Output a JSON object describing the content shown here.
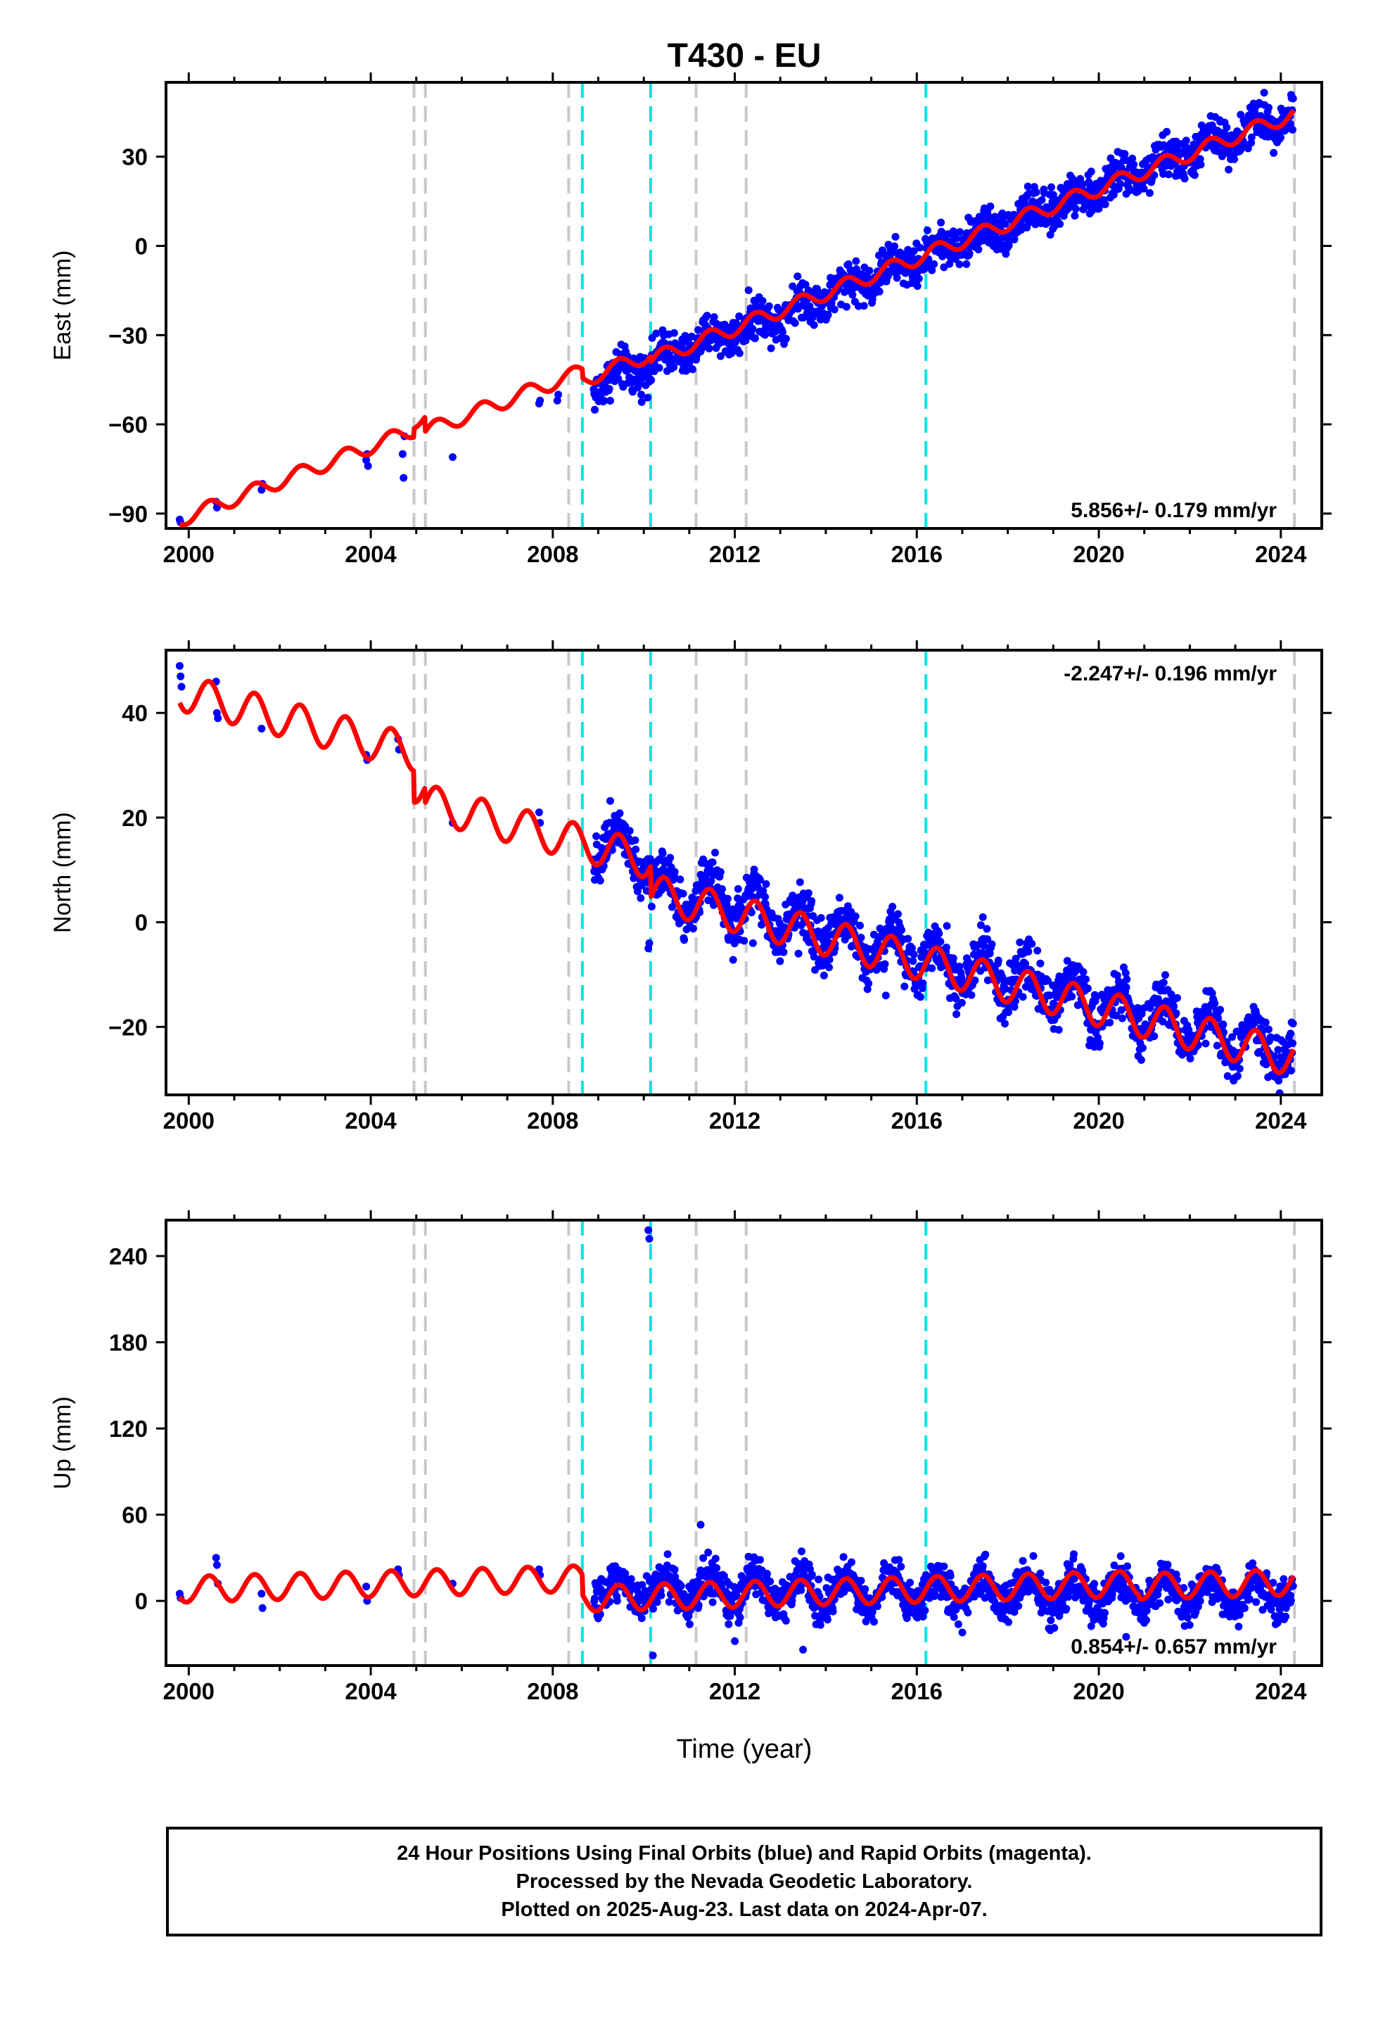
{
  "title": "T430 - EU",
  "x_axis_label": "Time (year)",
  "footer": {
    "lines": [
      "24 Hour Positions Using Final Orbits (blue) and Rapid Orbits (magenta).",
      "Processed by the Nevada Geodetic Laboratory.",
      "Plotted on 2025-Aug-23. Last data on 2024-Apr-07."
    ]
  },
  "colors": {
    "data_points": "#0000ff",
    "model_fit": "#ff0000",
    "equipment_change_lines": "#c8c8c8",
    "earthquake_lines": "#00e5e5"
  },
  "chart_data": [
    {
      "type": "scatter",
      "component": "east",
      "ylabel": "East (mm)",
      "rate_label": "5.856+/- 0.179 mm/yr",
      "xlim": [
        1999.5,
        2024.9
      ],
      "ylim": [
        -95,
        55
      ],
      "x_ticks": [
        "2000",
        "2004",
        "2008",
        "2012",
        "2016",
        "2020",
        "2024"
      ],
      "y_ticks": [
        "−90",
        "−60",
        "−30",
        "0",
        "30"
      ],
      "y_tick_values": [
        -90,
        -60,
        -30,
        0,
        30
      ],
      "series": [
        {
          "role": "observations",
          "color": "#0000ff",
          "points": [
            [
              1999.8,
              -92
            ],
            [
              1999.82,
              -93
            ],
            [
              2000.6,
              -86
            ],
            [
              2000.62,
              -88
            ],
            [
              2001.6,
              -82
            ],
            [
              2001.62,
              -80
            ],
            [
              2003.9,
              -72
            ],
            [
              2003.92,
              -70
            ],
            [
              2003.94,
              -74
            ],
            [
              2004.7,
              -70
            ],
            [
              2004.72,
              -78
            ],
            [
              2004.74,
              -64
            ],
            [
              2005.8,
              -71
            ],
            [
              2007.7,
              -53
            ],
            [
              2007.72,
              -52
            ],
            [
              2008.1,
              -52
            ],
            [
              2008.12,
              -50
            ]
          ],
          "dense_segment": {
            "from": 2008.9,
            "to": 2024.27,
            "start_value": -47,
            "end_value": 45,
            "offsets": [],
            "seasonal_amplitude": 2.5,
            "scatter_amplitude": 3.5
          }
        },
        {
          "role": "model",
          "color": "#ff0000",
          "start_x": 1999.8,
          "start_value": -92,
          "rate": 5.856,
          "seasonal_amplitude": 2.5,
          "offsets": [
            {
              "x": 2004.95,
              "dy": 3
            },
            {
              "x": 2005.2,
              "dy": -5
            },
            {
              "x": 2008.65,
              "dy": -3
            },
            {
              "x": 2010.15,
              "dy": -2
            }
          ]
        }
      ],
      "vertical_lines": {
        "equipment": [
          2004.95,
          2005.2,
          2008.35,
          2011.15,
          2012.25,
          2024.3
        ],
        "earthquake": [
          2008.65,
          2010.15,
          2016.2
        ]
      }
    },
    {
      "type": "scatter",
      "component": "north",
      "ylabel": "North (mm)",
      "rate_label": "-2.247+/- 0.196 mm/yr",
      "xlim": [
        1999.5,
        2024.9
      ],
      "ylim": [
        -33,
        52
      ],
      "x_ticks": [
        "2000",
        "2004",
        "2008",
        "2012",
        "2016",
        "2020",
        "2024"
      ],
      "y_ticks": [
        "−20",
        "0",
        "20",
        "40"
      ],
      "y_tick_values": [
        -20,
        0,
        20,
        40
      ],
      "series": [
        {
          "role": "observations",
          "color": "#0000ff",
          "points": [
            [
              1999.8,
              49
            ],
            [
              1999.82,
              47
            ],
            [
              1999.84,
              45
            ],
            [
              2000.6,
              46
            ],
            [
              2000.62,
              40
            ],
            [
              2000.64,
              39
            ],
            [
              2001.6,
              37
            ],
            [
              2003.9,
              32
            ],
            [
              2003.92,
              31
            ],
            [
              2004.6,
              35
            ],
            [
              2004.62,
              33
            ],
            [
              2005.8,
              19
            ],
            [
              2007.7,
              21
            ],
            [
              2007.72,
              19
            ],
            [
              2010.1,
              -5
            ],
            [
              2010.12,
              -4
            ],
            [
              2012.4,
              -4
            ],
            [
              2013.4,
              -6
            ],
            [
              2014.2,
              -5
            ],
            [
              2015.3,
              -8
            ],
            [
              2015.32,
              -14
            ]
          ],
          "dense_segment": {
            "from": 2008.9,
            "to": 2024.27,
            "start_value": 16,
            "end_value": -19,
            "offsets": [
              {
                "x": 2010.15,
                "dy": -6
              }
            ],
            "seasonal_amplitude": 4,
            "scatter_amplitude": 2.5
          }
        },
        {
          "role": "model",
          "color": "#ff0000",
          "start_x": 1999.8,
          "start_value": 44,
          "rate": -2.247,
          "seasonal_amplitude": 3.5,
          "offsets": [
            {
              "x": 2004.95,
              "dy": -6
            },
            {
              "x": 2005.2,
              "dy": -3
            },
            {
              "x": 2010.15,
              "dy": -6
            }
          ]
        }
      ],
      "vertical_lines": {
        "equipment": [
          2004.95,
          2005.2,
          2008.35,
          2011.15,
          2012.25,
          2024.3
        ],
        "earthquake": [
          2008.65,
          2010.15,
          2016.2
        ]
      }
    },
    {
      "type": "scatter",
      "component": "up",
      "ylabel": "Up (mm)",
      "rate_label": "0.854+/- 0.657 mm/yr",
      "xlim": [
        1999.5,
        2024.9
      ],
      "ylim": [
        -45,
        265
      ],
      "x_ticks": [
        "2000",
        "2004",
        "2008",
        "2012",
        "2016",
        "2020",
        "2024"
      ],
      "y_ticks": [
        "0",
        "60",
        "120",
        "180",
        "240"
      ],
      "y_tick_values": [
        0,
        60,
        120,
        180,
        240
      ],
      "series": [
        {
          "role": "observations",
          "color": "#0000ff",
          "points": [
            [
              1999.8,
              5
            ],
            [
              1999.82,
              2
            ],
            [
              2000.6,
              30
            ],
            [
              2000.62,
              25
            ],
            [
              2000.64,
              12
            ],
            [
              2001.6,
              5
            ],
            [
              2001.62,
              -5
            ],
            [
              2003.9,
              10
            ],
            [
              2003.92,
              0
            ],
            [
              2004.6,
              22
            ],
            [
              2004.62,
              18
            ],
            [
              2005.8,
              12
            ],
            [
              2007.7,
              22
            ],
            [
              2007.72,
              18
            ],
            [
              2010.1,
              258
            ],
            [
              2010.12,
              252
            ],
            [
              2010.2,
              -38
            ],
            [
              2011.25,
              53
            ],
            [
              2012.0,
              -28
            ],
            [
              2013.5,
              -34
            ],
            [
              2017.0,
              -22
            ],
            [
              2020.6,
              -25
            ]
          ],
          "dense_segment": {
            "from": 2008.9,
            "to": 2024.27,
            "start_value": 8,
            "end_value": 5,
            "offsets": [],
            "seasonal_amplitude": 10,
            "scatter_amplitude": 7
          }
        },
        {
          "role": "model",
          "color": "#ff0000",
          "start_x": 1999.8,
          "start_value": 8,
          "rate": 0.854,
          "seasonal_amplitude": 9,
          "offsets": [
            {
              "x": 2008.65,
              "dy": -14
            },
            {
              "x": 2020.9,
              "dy": -2
            }
          ]
        }
      ],
      "vertical_lines": {
        "equipment": [
          2004.95,
          2005.2,
          2008.35,
          2011.15,
          2012.25,
          2024.3
        ],
        "earthquake": [
          2008.65,
          2010.15,
          2016.2
        ]
      }
    }
  ]
}
